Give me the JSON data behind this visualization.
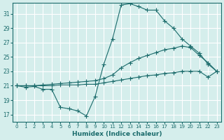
{
  "xlabel": "Humidex (Indice chaleur)",
  "ylabel": "",
  "bg_color": "#d5eeec",
  "grid_color": "#b8ddd9",
  "line_color": "#1a6b6b",
  "xlim": [
    -0.5,
    23.5
  ],
  "ylim": [
    16.0,
    32.5
  ],
  "yticks": [
    17,
    19,
    21,
    23,
    25,
    27,
    29,
    31
  ],
  "xticks": [
    0,
    1,
    2,
    3,
    4,
    5,
    6,
    7,
    8,
    9,
    10,
    11,
    12,
    13,
    14,
    15,
    16,
    17,
    18,
    19,
    20,
    21,
    22,
    23
  ],
  "series1_x": [
    0,
    1,
    2,
    3,
    4,
    5,
    6,
    7,
    8,
    9,
    10,
    11,
    12,
    13,
    14,
    15,
    16,
    17,
    18,
    19,
    20,
    21,
    22,
    23
  ],
  "series1_y": [
    21.0,
    20.8,
    20.9,
    20.5,
    20.5,
    18.0,
    17.8,
    17.5,
    16.8,
    19.5,
    24.0,
    27.5,
    32.2,
    32.4,
    32.0,
    31.5,
    31.5,
    30.0,
    29.0,
    27.5,
    26.5,
    25.5,
    24.0,
    23.0
  ],
  "series2_x": [
    0,
    1,
    2,
    3,
    4,
    5,
    6,
    7,
    8,
    9,
    10,
    11,
    12,
    13,
    14,
    15,
    16,
    17,
    18,
    19,
    20,
    21,
    22,
    23
  ],
  "series2_y": [
    21.0,
    21.0,
    21.0,
    21.1,
    21.2,
    21.3,
    21.4,
    21.5,
    21.6,
    21.7,
    22.0,
    22.5,
    23.5,
    24.2,
    24.8,
    25.2,
    25.6,
    26.0,
    26.2,
    26.5,
    26.3,
    25.2,
    24.2,
    23.0
  ],
  "series3_x": [
    0,
    1,
    2,
    3,
    4,
    5,
    6,
    7,
    8,
    9,
    10,
    11,
    12,
    13,
    14,
    15,
    16,
    17,
    18,
    19,
    20,
    21,
    22,
    23
  ],
  "series3_y": [
    21.0,
    21.0,
    21.0,
    21.0,
    21.0,
    21.1,
    21.1,
    21.1,
    21.2,
    21.2,
    21.4,
    21.6,
    21.8,
    22.0,
    22.2,
    22.4,
    22.5,
    22.7,
    22.8,
    23.0,
    23.0,
    23.0,
    22.2,
    23.0
  ]
}
